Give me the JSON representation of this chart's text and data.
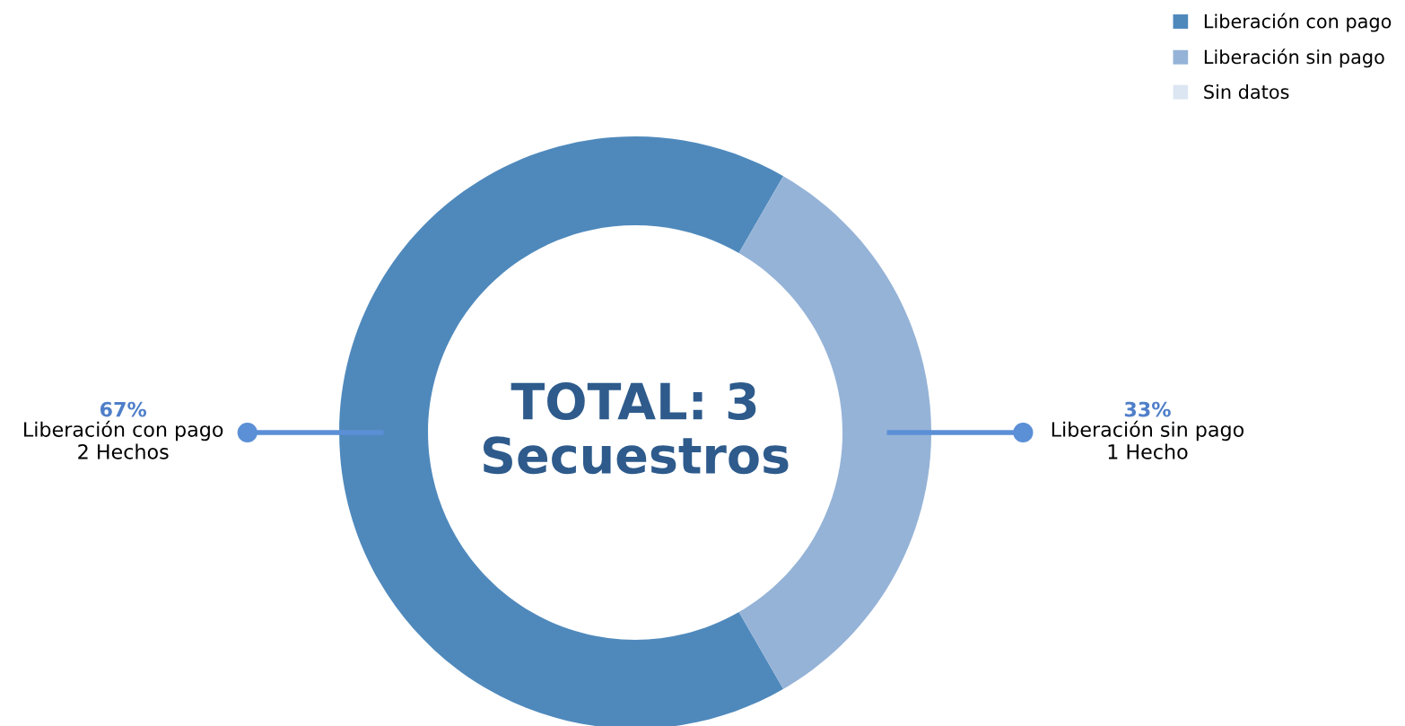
{
  "chart_data": {
    "type": "donut",
    "categories": [
      "Liberación con pago",
      "Liberación sin pago",
      "Sin datos"
    ],
    "values": [
      2,
      1,
      0
    ],
    "colors": [
      "#4f89bc",
      "#95b3d7",
      "#dce6f2"
    ],
    "value_labels": [
      "67%\nLiberación con pago\n2 Hechos",
      "33%\nLiberación sin pago\n1 Hecho",
      null
    ],
    "annotations": [
      "TOTAL: 3\nSecuestros"
    ],
    "legend": "top right"
  }
}
